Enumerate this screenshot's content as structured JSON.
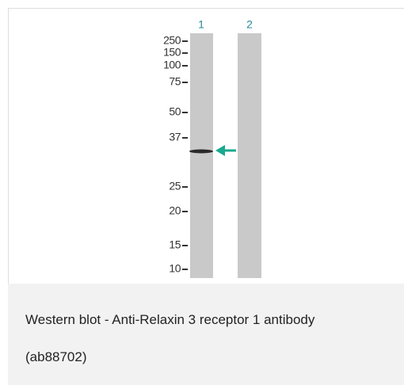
{
  "lanes": [
    "1",
    "2"
  ],
  "markers": [
    "250",
    "150",
    "100",
    "75",
    "50",
    "37",
    "25",
    "20",
    "15",
    "10"
  ],
  "caption": {
    "line1": "Western blot - Anti-Relaxin 3 receptor 1 antibody",
    "line2": "(ab88702)"
  }
}
